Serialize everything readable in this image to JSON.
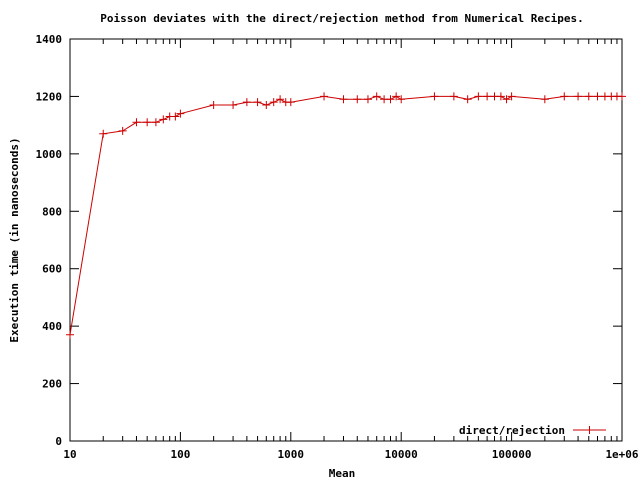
{
  "chart_data": {
    "type": "line",
    "title": "Poisson deviates with the direct/rejection method from Numerical Recipes.",
    "xlabel": "Mean",
    "ylabel": "Execution time (in nanoseconds)",
    "xscale": "log",
    "xlim": [
      10,
      1000000
    ],
    "ylim": [
      0,
      1400
    ],
    "x_tick_labels": [
      "10",
      "100",
      "1000",
      "10000",
      "100000",
      "1e+06"
    ],
    "x_ticks": [
      10,
      100,
      1000,
      10000,
      100000,
      1000000
    ],
    "y_ticks": [
      0,
      200,
      400,
      600,
      800,
      1000,
      1200,
      1400
    ],
    "grid": false,
    "legend_position": "bottom-right",
    "series": [
      {
        "name": "direct/rejection",
        "color": "#cc0000",
        "marker": "plus",
        "x": [
          10,
          20,
          30,
          40,
          50,
          60,
          70,
          80,
          90,
          100,
          200,
          300,
          400,
          500,
          600,
          700,
          800,
          900,
          1000,
          2000,
          3000,
          4000,
          5000,
          6000,
          7000,
          8000,
          9000,
          10000,
          20000,
          30000,
          40000,
          50000,
          60000,
          70000,
          80000,
          90000,
          100000,
          200000,
          300000,
          400000,
          500000,
          600000,
          700000,
          800000,
          900000,
          1000000
        ],
        "y": [
          370,
          1070,
          1080,
          1110,
          1110,
          1110,
          1120,
          1130,
          1130,
          1140,
          1170,
          1170,
          1180,
          1180,
          1170,
          1180,
          1190,
          1180,
          1180,
          1200,
          1190,
          1190,
          1190,
          1200,
          1190,
          1190,
          1200,
          1190,
          1200,
          1200,
          1190,
          1200,
          1200,
          1200,
          1200,
          1190,
          1200,
          1190,
          1200,
          1200,
          1200,
          1200,
          1200,
          1200,
          1200,
          1200
        ]
      }
    ]
  }
}
